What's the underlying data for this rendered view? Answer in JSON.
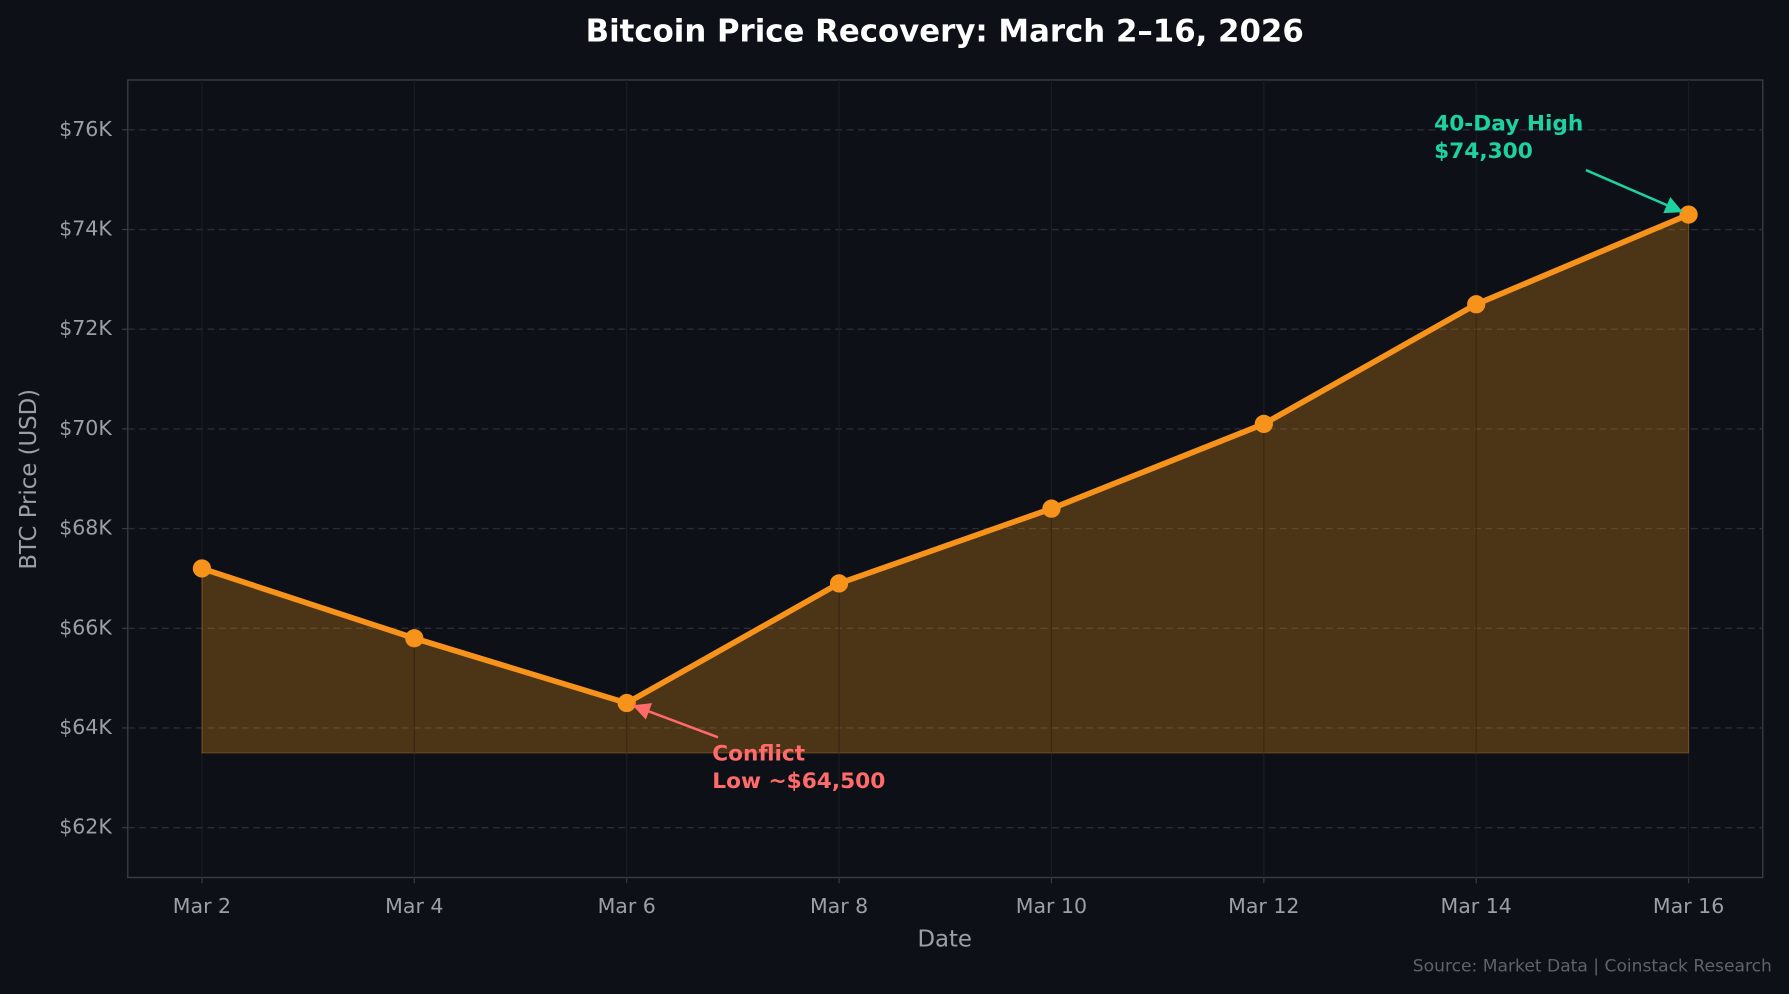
{
  "chart_data": {
    "type": "line",
    "title": "Bitcoin Price Recovery: March 2–16, 2026",
    "xlabel": "Date",
    "ylabel": "BTC Price (USD)",
    "source": "Source: Market Data | Coinstack Research",
    "categories": [
      "Mar 2",
      "Mar 4",
      "Mar 6",
      "Mar 8",
      "Mar 10",
      "Mar 12",
      "Mar 14",
      "Mar 16"
    ],
    "series": [
      {
        "name": "BTC Price",
        "color": "#f7931a",
        "values": [
          67200,
          65800,
          64500,
          66900,
          68400,
          70100,
          72500,
          74300
        ]
      }
    ],
    "fill_baseline": 63500,
    "ylim": [
      61000,
      77000
    ],
    "yticks": [
      {
        "value": 62000,
        "label": "$62K"
      },
      {
        "value": 64000,
        "label": "$64K"
      },
      {
        "value": 66000,
        "label": "$66K"
      },
      {
        "value": 68000,
        "label": "$68K"
      },
      {
        "value": 70000,
        "label": "$70K"
      },
      {
        "value": 72000,
        "label": "$72K"
      },
      {
        "value": 74000,
        "label": "$74K"
      },
      {
        "value": 76000,
        "label": "$76K"
      }
    ],
    "grid": true,
    "annotations": [
      {
        "lines": [
          "40-Day High",
          "$74,300"
        ],
        "x": "Mar 16",
        "y": 74300,
        "color": "#1dd1a1"
      },
      {
        "lines": [
          "Conflict",
          "Low ~$64,500"
        ],
        "x": "Mar 6",
        "y": 64500,
        "color": "#ff6b6b"
      }
    ]
  }
}
